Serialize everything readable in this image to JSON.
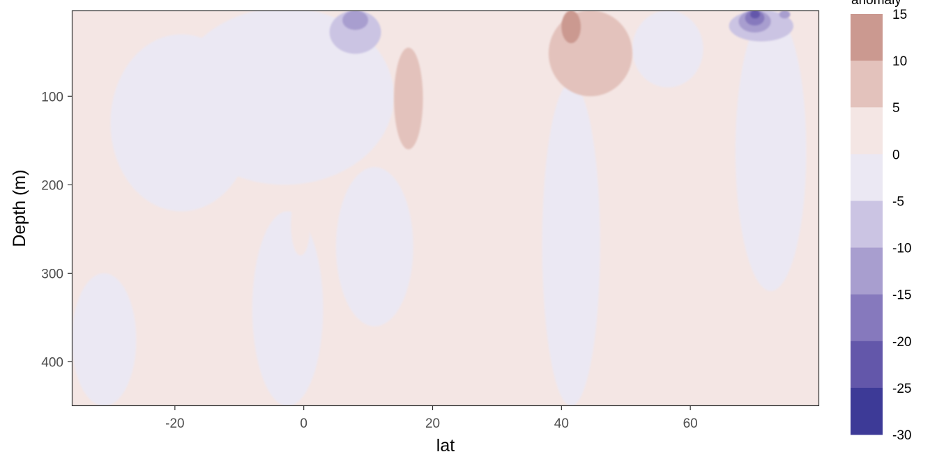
{
  "chart_data": {
    "type": "heatmap",
    "title": "",
    "xlabel": "lat",
    "ylabel": "Depth (m)",
    "xlim": [
      -36,
      80
    ],
    "ylim": [
      450,
      3
    ],
    "x_ticks": [
      {
        "value": -20,
        "label": "-20"
      },
      {
        "value": 0,
        "label": "0"
      },
      {
        "value": 20,
        "label": "20"
      },
      {
        "value": 40,
        "label": "40"
      },
      {
        "value": 60,
        "label": "60"
      }
    ],
    "y_ticks": [
      {
        "value": 100,
        "label": "100"
      },
      {
        "value": 200,
        "label": "200"
      },
      {
        "value": 300,
        "label": "300"
      },
      {
        "value": 400,
        "label": "400"
      }
    ],
    "grid": false,
    "legend": {
      "title": "anomaly",
      "placement": "right",
      "breaks": [
        "15",
        "10",
        "5",
        "0",
        "-5",
        "-10",
        "-15",
        "-20",
        "-25",
        "-30"
      ],
      "colors": [
        "#cb9990",
        "#e3c2bc",
        "#f4e6e4",
        "#ebe8f3",
        "#cbc4e3",
        "#a89ecf",
        "#8679bd",
        "#6357aa",
        "#3d3a97"
      ]
    },
    "background_level": "0 to 5",
    "regions": [
      {
        "level": "-5 to 0",
        "lat": [
          -36,
          -26
        ],
        "depth": [
          300,
          450
        ]
      },
      {
        "level": "-5 to 0",
        "lat": [
          -30,
          -8
        ],
        "depth": [
          30,
          230
        ]
      },
      {
        "level": "-5 to 0",
        "lat": [
          -20,
          14
        ],
        "depth": [
          0,
          200
        ]
      },
      {
        "level": "-5 to 0",
        "lat": [
          -8,
          3
        ],
        "depth": [
          230,
          450
        ]
      },
      {
        "level": "-5 to 0",
        "lat": [
          5,
          17
        ],
        "depth": [
          180,
          360
        ]
      },
      {
        "level": "-5 to 0",
        "lat": [
          37,
          46
        ],
        "depth": [
          85,
          450
        ]
      },
      {
        "level": "-5 to 0",
        "lat": [
          51,
          62
        ],
        "depth": [
          3,
          90
        ]
      },
      {
        "level": "-5 to 0",
        "lat": [
          67,
          78
        ],
        "depth": [
          3,
          320
        ]
      },
      {
        "level": "0 to 5",
        "lat": [
          -2,
          1
        ],
        "depth": [
          210,
          280
        ]
      },
      {
        "level": "-10 to -5",
        "lat": [
          4,
          12
        ],
        "depth": [
          3,
          52
        ]
      },
      {
        "level": "-15 to -10",
        "lat": [
          6,
          10
        ],
        "depth": [
          3,
          25
        ]
      },
      {
        "level": "5 to 10",
        "lat": [
          14,
          18.5
        ],
        "depth": [
          45,
          160
        ]
      },
      {
        "level": "5 to 10",
        "lat": [
          38,
          51
        ],
        "depth": [
          3,
          100
        ]
      },
      {
        "level": "10 to 15",
        "lat": [
          40,
          43
        ],
        "depth": [
          3,
          40
        ]
      },
      {
        "level": "-10 to -5",
        "lat": [
          66,
          76
        ],
        "depth": [
          3,
          38
        ]
      },
      {
        "level": "-15 to -10",
        "lat": [
          67.5,
          72.5
        ],
        "depth": [
          3,
          28
        ]
      },
      {
        "level": "-20 to -15",
        "lat": [
          68.5,
          71.5
        ],
        "depth": [
          3,
          20
        ]
      },
      {
        "level": "-25 to -20",
        "lat": [
          69.3,
          70.8
        ],
        "depth": [
          3,
          12
        ]
      },
      {
        "level": "-15 to -10",
        "lat": [
          73.8,
          75.5
        ],
        "depth": [
          3,
          12
        ]
      }
    ]
  }
}
